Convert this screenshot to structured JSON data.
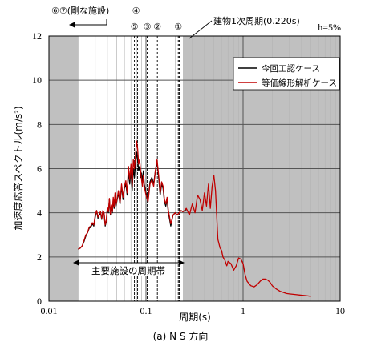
{
  "chart_data": {
    "type": "line",
    "subtitle": "h=5%",
    "xlabel": "周期(s)",
    "ylabel": "加速度応答スペクトル(m/s²)",
    "caption": "(a) N S 方向",
    "x_scale": "log",
    "xlim": [
      0.01,
      10
    ],
    "ylim": [
      0,
      12
    ],
    "x_ticks": [
      "0.01",
      "0.1",
      "1",
      "10"
    ],
    "y_ticks": [
      "0",
      "2",
      "4",
      "6",
      "8",
      "10",
      "12"
    ],
    "grid": true,
    "legend_position": "top-right",
    "series": [
      {
        "name": "今回工認ケース",
        "color": "#000000",
        "x": [
          0.02,
          0.021,
          0.022,
          0.023,
          0.024,
          0.025,
          0.026,
          0.027,
          0.028,
          0.029,
          0.03,
          0.031,
          0.032,
          0.033,
          0.034,
          0.035,
          0.036,
          0.037,
          0.038,
          0.039,
          0.04,
          0.041,
          0.042,
          0.043,
          0.044,
          0.045,
          0.046,
          0.047,
          0.048,
          0.049,
          0.05,
          0.052,
          0.054,
          0.056,
          0.058,
          0.06,
          0.062,
          0.064,
          0.066,
          0.068,
          0.07,
          0.072,
          0.074,
          0.076,
          0.078,
          0.08,
          0.082,
          0.084,
          0.086,
          0.088,
          0.09,
          0.092,
          0.094,
          0.096,
          0.098,
          0.1,
          0.105,
          0.11,
          0.115,
          0.12,
          0.125,
          0.13,
          0.135,
          0.14,
          0.145,
          0.15,
          0.155,
          0.16,
          0.165,
          0.17,
          0.175,
          0.18,
          0.19,
          0.2,
          0.21,
          0.22,
          0.23,
          0.24,
          0.25,
          0.26
        ],
        "y": [
          2.35,
          2.4,
          2.5,
          2.7,
          2.95,
          3.1,
          3.3,
          3.35,
          3.5,
          3.4,
          3.8,
          4.1,
          3.75,
          3.9,
          4.0,
          3.7,
          4.1,
          3.95,
          3.4,
          3.6,
          4.2,
          4.0,
          4.6,
          3.9,
          4.3,
          4.0,
          4.6,
          4.2,
          4.8,
          4.3,
          4.5,
          4.9,
          4.4,
          5.2,
          4.6,
          5.1,
          5.3,
          4.8,
          5.9,
          5.3,
          5.9,
          5.0,
          6.0,
          5.6,
          6.2,
          6.75,
          6.4,
          5.9,
          6.1,
          5.6,
          5.8,
          5.4,
          5.9,
          5.3,
          5.1,
          4.9,
          4.6,
          5.4,
          5.6,
          5.3,
          5.9,
          6.3,
          5.6,
          4.8,
          5.3,
          5.1,
          4.5,
          4.3,
          4.6,
          4.0,
          3.7,
          3.4,
          3.9,
          4.0,
          3.9,
          4.0,
          4.1,
          4.05,
          4.1,
          4.15
        ]
      },
      {
        "name": "等価線形解析ケース",
        "color": "#c00000",
        "x": [
          0.02,
          0.021,
          0.022,
          0.023,
          0.024,
          0.025,
          0.026,
          0.027,
          0.028,
          0.029,
          0.03,
          0.031,
          0.032,
          0.033,
          0.034,
          0.035,
          0.036,
          0.037,
          0.038,
          0.039,
          0.04,
          0.041,
          0.042,
          0.043,
          0.044,
          0.045,
          0.046,
          0.047,
          0.048,
          0.049,
          0.05,
          0.052,
          0.054,
          0.056,
          0.058,
          0.06,
          0.062,
          0.064,
          0.066,
          0.068,
          0.07,
          0.072,
          0.074,
          0.076,
          0.078,
          0.08,
          0.082,
          0.084,
          0.086,
          0.088,
          0.09,
          0.092,
          0.094,
          0.096,
          0.098,
          0.1,
          0.105,
          0.11,
          0.115,
          0.12,
          0.125,
          0.13,
          0.135,
          0.14,
          0.145,
          0.15,
          0.155,
          0.16,
          0.165,
          0.17,
          0.175,
          0.18,
          0.19,
          0.2,
          0.21,
          0.22,
          0.23,
          0.24,
          0.25,
          0.26,
          0.28,
          0.3,
          0.32,
          0.34,
          0.36,
          0.38,
          0.4,
          0.42,
          0.44,
          0.46,
          0.48,
          0.5,
          0.52,
          0.55,
          0.58,
          0.6,
          0.62,
          0.65,
          0.68,
          0.7,
          0.75,
          0.8,
          0.85,
          0.9,
          0.95,
          1.0,
          1.05,
          1.1,
          1.2,
          1.3,
          1.4,
          1.5,
          1.6,
          1.7,
          1.8,
          1.9,
          2.0,
          2.2,
          2.4,
          2.6,
          2.8,
          3.0,
          3.5,
          4.0,
          4.5,
          5.0
        ],
        "y": [
          2.35,
          2.4,
          2.5,
          2.75,
          3.0,
          3.1,
          3.35,
          3.4,
          3.55,
          3.45,
          3.9,
          4.1,
          3.8,
          3.95,
          4.05,
          3.75,
          4.1,
          4.0,
          3.45,
          3.65,
          4.25,
          4.05,
          4.65,
          3.95,
          4.35,
          4.05,
          4.7,
          4.25,
          4.9,
          4.35,
          4.55,
          5.0,
          4.45,
          5.3,
          4.7,
          5.2,
          5.45,
          4.9,
          6.1,
          5.5,
          6.2,
          5.2,
          6.4,
          6.0,
          6.6,
          7.25,
          6.9,
          6.2,
          6.4,
          5.9,
          5.5,
          5.2,
          5.7,
          5.2,
          5.0,
          4.8,
          4.5,
          5.3,
          5.5,
          5.2,
          5.9,
          6.4,
          5.7,
          4.9,
          5.4,
          5.2,
          4.6,
          4.4,
          4.7,
          4.1,
          3.8,
          3.5,
          3.9,
          4.0,
          3.9,
          4.0,
          4.1,
          4.05,
          4.1,
          4.2,
          3.9,
          4.4,
          4.0,
          4.8,
          4.6,
          4.1,
          4.9,
          4.3,
          5.3,
          4.2,
          5.2,
          5.7,
          5.0,
          2.8,
          2.4,
          2.3,
          2.0,
          1.85,
          1.6,
          1.8,
          1.7,
          1.4,
          1.6,
          1.95,
          1.9,
          1.7,
          1.2,
          0.9,
          0.7,
          0.65,
          0.75,
          0.9,
          1.0,
          1.0,
          0.95,
          0.85,
          0.7,
          0.55,
          0.45,
          0.4,
          0.35,
          0.33,
          0.3,
          0.27,
          0.25,
          0.22
        ]
      }
    ],
    "annotations": {
      "rigid_label": "⑥⑦(剛な施設)",
      "period_label": "建物1次周期(0.220s)",
      "band_label": "主要施設の周期帯",
      "markers": [
        {
          "label": "④",
          "x": 0.082
        },
        {
          "label": "⑤",
          "x": 0.076
        },
        {
          "label": "③",
          "x": 0.103
        },
        {
          "label": "②",
          "x": 0.131
        },
        {
          "label": "①",
          "x": 0.215
        }
      ],
      "building_period": 0.22
    }
  }
}
